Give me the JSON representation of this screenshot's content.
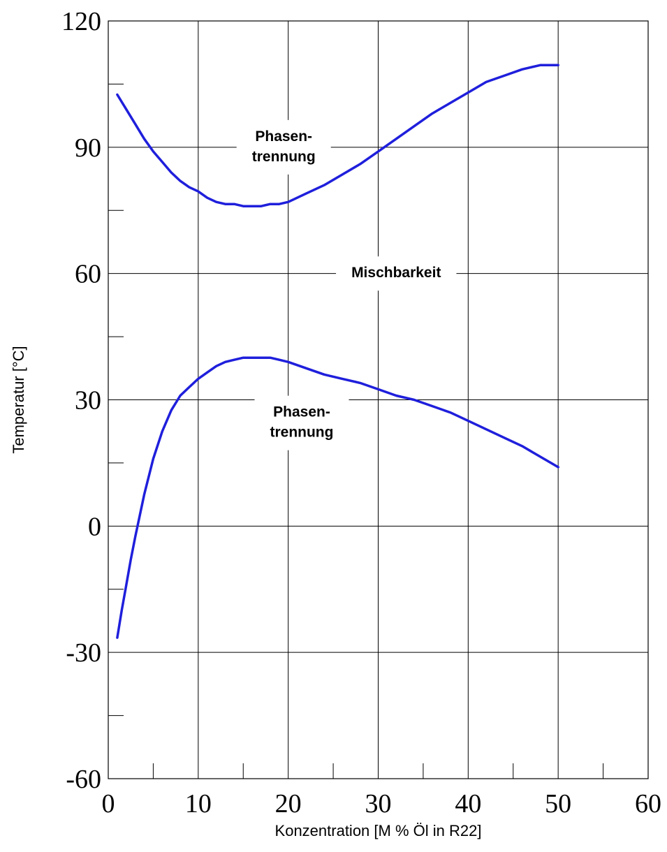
{
  "chart_data": {
    "type": "line",
    "xlabel": "Konzentration [M % Öl in R22]",
    "ylabel": "Temperatur [°C]",
    "xlim": [
      0,
      60
    ],
    "ylim": [
      -60,
      120
    ],
    "x_ticks": [
      0,
      10,
      20,
      30,
      40,
      50,
      60
    ],
    "y_ticks": [
      -60,
      -30,
      0,
      30,
      60,
      90,
      120
    ],
    "x_minor_ticks": [
      5,
      15,
      25,
      35,
      45,
      55
    ],
    "y_minor_ticks": [
      -45,
      -15,
      15,
      45,
      75,
      105
    ],
    "grid": true,
    "series_color": "#1f1fdc",
    "series": [
      {
        "x": [
          1,
          2,
          3,
          4,
          5,
          6,
          7,
          8,
          9,
          10,
          11,
          12,
          13,
          14,
          15,
          16,
          17,
          18,
          19,
          20,
          22,
          24,
          26,
          28,
          30,
          32,
          34,
          36,
          38,
          40,
          42,
          44,
          46,
          48,
          50
        ],
        "y": [
          102.5,
          99,
          95.5,
          92,
          89,
          86.5,
          84,
          82,
          80.5,
          79.5,
          78,
          77,
          76.5,
          76.5,
          76,
          76,
          76,
          76.5,
          76.5,
          77,
          79,
          81,
          83.5,
          86,
          89,
          92,
          95,
          98,
          100.5,
          103,
          105.5,
          107,
          108.5,
          109.5,
          109.5
        ]
      },
      {
        "x": [
          1,
          1.5,
          2,
          2.5,
          3,
          3.5,
          4,
          5,
          6,
          7,
          8,
          9,
          10,
          11,
          12,
          13,
          14,
          15,
          16,
          17,
          18,
          19,
          20,
          22,
          24,
          26,
          28,
          30,
          32,
          34,
          36,
          38,
          40,
          42,
          44,
          46,
          48,
          50
        ],
        "y": [
          -26.5,
          -20,
          -14,
          -8,
          -2.5,
          2.5,
          7.5,
          16,
          22.5,
          27.5,
          31,
          33,
          35,
          36.5,
          38,
          39,
          39.5,
          40,
          40,
          40,
          40,
          39.5,
          39,
          37.5,
          36,
          35,
          34,
          32.5,
          31,
          30,
          28.5,
          27,
          25,
          23,
          21,
          19,
          16.5,
          14
        ]
      }
    ],
    "annotations": [
      {
        "id": "upper",
        "lines": [
          "Phasen-",
          "trennung"
        ],
        "x": 19.5,
        "y": 90
      },
      {
        "id": "middle",
        "lines": [
          "Mischbarkeit"
        ],
        "x": 32,
        "y": 60
      },
      {
        "id": "lower",
        "lines": [
          "Phasen-",
          "trennung"
        ],
        "x": 21.5,
        "y": 24.5
      }
    ]
  }
}
